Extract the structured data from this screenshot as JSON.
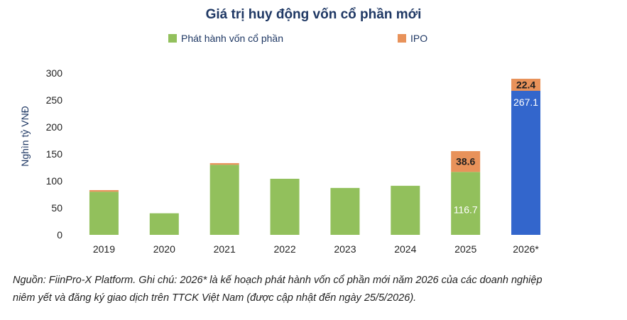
{
  "chart_data": {
    "type": "bar",
    "stacked": true,
    "title": "Giá trị huy động vốn cổ phần mới",
    "xlabel": "",
    "ylabel": "Nghìn tỷ VNĐ",
    "ylim": [
      0,
      300
    ],
    "yticks": [
      0,
      50,
      100,
      150,
      200,
      250,
      300
    ],
    "grid": false,
    "legend_position": "top",
    "categories": [
      "2019",
      "2020",
      "2021",
      "2022",
      "2023",
      "2024",
      "2025",
      "2026*"
    ],
    "series": [
      {
        "name": "Phát hành vốn cổ phần",
        "color": "#92c05c",
        "values": [
          80,
          40,
          130,
          104,
          87,
          91,
          116.7,
          267.1
        ]
      },
      {
        "name": "IPO",
        "color": "#e8925a",
        "values": [
          3,
          0,
          3,
          0,
          0,
          0,
          38.6,
          22.4
        ]
      }
    ],
    "highlight": {
      "category": "2026*",
      "series": "Phát hành vốn cổ phần",
      "color": "#3366cc"
    },
    "data_labels": [
      {
        "category": "2025",
        "series": "Phát hành vốn cổ phần",
        "text": "116.7"
      },
      {
        "category": "2025",
        "series": "IPO",
        "text": "38.6"
      },
      {
        "category": "2026*",
        "series": "Phát hành vốn cổ phần",
        "text": "267.1"
      },
      {
        "category": "2026*",
        "series": "IPO",
        "text": "22.4"
      }
    ]
  },
  "footnote": {
    "line1": "Nguồn: FiinPro-X Platform. Ghi chú: 2026* là kế hoạch phát hành vốn cổ phần mới năm 2026 của các doanh nghiệp",
    "line2": "niêm yết và đăng ký giao dịch trên TTCK Việt Nam (được cập nhật đến ngày 25/5/2026)."
  }
}
